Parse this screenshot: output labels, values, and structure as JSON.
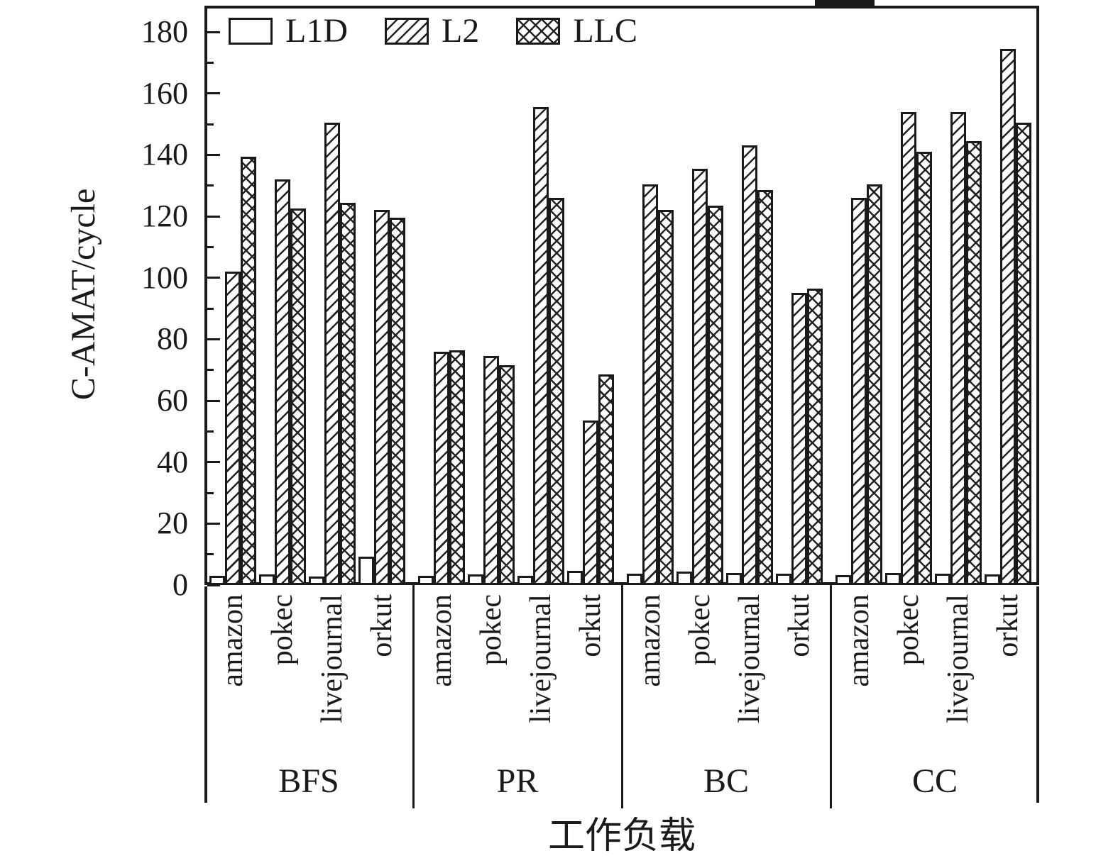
{
  "chart_data": {
    "type": "bar",
    "title": "",
    "ylabel": "C-AMAT/cycle",
    "xlabel": "工作负载",
    "ylim": [
      0,
      180
    ],
    "yticks": [
      0,
      20,
      40,
      60,
      80,
      100,
      120,
      140,
      160,
      180
    ],
    "grid": false,
    "legend_position": "top-left-inside",
    "groups": [
      "BFS",
      "PR",
      "BC",
      "CC"
    ],
    "categories": [
      "amazon",
      "pokec",
      "livejournal",
      "orkut"
    ],
    "series": [
      {
        "name": "L1D",
        "pattern": "plain",
        "values": {
          "BFS": [
            3.0,
            3.5,
            2.7,
            9.2
          ],
          "PR": [
            3.1,
            3.5,
            2.9,
            4.6
          ],
          "BC": [
            3.8,
            4.4,
            3.9,
            3.8
          ],
          "CC": [
            3.2,
            4.0,
            3.6,
            3.5
          ]
        }
      },
      {
        "name": "L2",
        "pattern": "diagonal-hatch",
        "values": {
          "BFS": [
            102,
            132,
            150.5,
            122
          ],
          "PR": [
            76,
            74.5,
            155.5,
            53.5
          ],
          "BC": [
            130.5,
            135.5,
            143,
            95
          ],
          "CC": [
            126,
            154,
            154,
            174.5
          ]
        }
      },
      {
        "name": "LLC",
        "pattern": "cross-hatch",
        "values": {
          "BFS": [
            139.5,
            122.5,
            124.5,
            119.5
          ],
          "PR": [
            76.5,
            71.5,
            126,
            68.5
          ],
          "BC": [
            122,
            123.5,
            128.5,
            96.5
          ],
          "CC": [
            130.5,
            141,
            144.5,
            150.5
          ]
        }
      }
    ]
  }
}
